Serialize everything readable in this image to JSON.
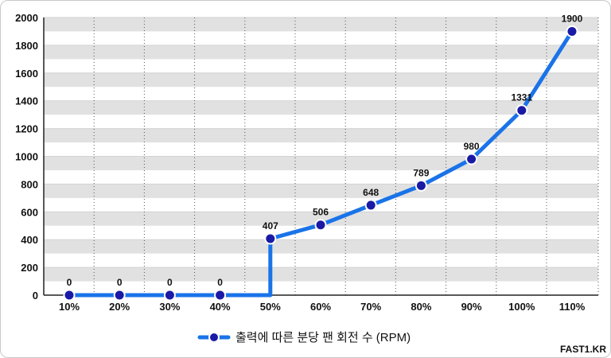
{
  "chart_data": {
    "type": "line",
    "title": "",
    "xlabel": "",
    "ylabel": "",
    "categories": [
      "10%",
      "20%",
      "30%",
      "40%",
      "50%",
      "60%",
      "70%",
      "80%",
      "90%",
      "100%",
      "110%"
    ],
    "series": [
      {
        "name": "출력에 따른 분당 팬 회전 수 (RPM)",
        "values": [
          0,
          0,
          0,
          0,
          407,
          506,
          648,
          789,
          980,
          1331,
          1900
        ],
        "data_labels": [
          "0",
          "0",
          "0",
          "0",
          "407",
          "506",
          "648",
          "789",
          "980",
          "1331",
          "1900"
        ]
      }
    ],
    "ylim": [
      0,
      2000
    ],
    "yticks": [
      "0",
      "200",
      "400",
      "600",
      "800",
      "1000",
      "1200",
      "1400",
      "1600",
      "1800",
      "2000"
    ],
    "step_at": "50%",
    "grid": "horizontal bands, vertical dotted lines",
    "legend_position": "bottom-center",
    "colors": {
      "line": "#1a73e8",
      "marker_fill": "#1a1aa6",
      "marker_stroke": "#ffffff",
      "band": "#e1e1e1"
    }
  },
  "watermark": "FAST1.KR"
}
